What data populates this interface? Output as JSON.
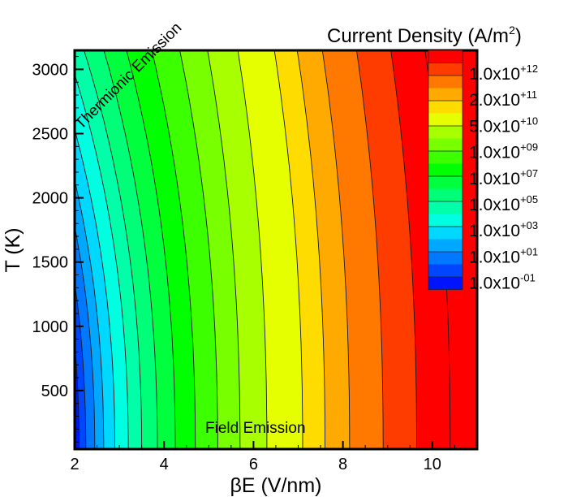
{
  "chart_data": {
    "type": "contour",
    "title": "",
    "xlabel": "βE (V/nm)",
    "ylabel": "T (K)",
    "xlim": [
      2,
      11
    ],
    "ylim": [
      44,
      3150
    ],
    "x_ticks": [
      2,
      4,
      6,
      8,
      10
    ],
    "y_ticks": [
      500,
      1000,
      1500,
      2000,
      2500,
      3000
    ],
    "grid": false,
    "colorbar": {
      "title": "Current Density (A/m²)",
      "scale": "log",
      "position": "inside-right",
      "labels": [
        {
          "mant": "1.0x10",
          "exp": "+12"
        },
        {
          "mant": "2.0x10",
          "exp": "+11"
        },
        {
          "mant": "5.0x10",
          "exp": "+10"
        },
        {
          "mant": "1.0x10",
          "exp": "+09"
        },
        {
          "mant": "1.0x10",
          "exp": "+07"
        },
        {
          "mant": "1.0x10",
          "exp": "+05"
        },
        {
          "mant": "1.0x10",
          "exp": "+03"
        },
        {
          "mant": "1.0x10",
          "exp": "+01"
        },
        {
          "mant": "1.0x10",
          "exp": "-01"
        }
      ],
      "band_colors_top_to_bottom": [
        "#ff0000",
        "#ff3c00",
        "#ff7800",
        "#ffaa00",
        "#ffdc00",
        "#e6ff00",
        "#a8ff00",
        "#78ff00",
        "#3cff00",
        "#00ff00",
        "#00ff3c",
        "#00ff78",
        "#00ffa8",
        "#00ffe0",
        "#00d8ff",
        "#00a8ff",
        "#0078ff",
        "#0046ff",
        "#0014ff"
      ]
    },
    "annotations": [
      {
        "text": "Thermionic Emission",
        "x": 2.1,
        "y": 2550,
        "rotation": -45
      },
      {
        "text": "Field Emission",
        "x": 5.0,
        "y": 170
      }
    ],
    "contour_levels_bottom_x_positions": [
      2.1,
      2.25,
      2.45,
      2.65,
      2.9,
      3.2,
      3.5,
      3.85,
      4.25,
      4.7,
      5.2,
      5.7,
      6.3,
      7.1,
      7.6,
      8.15,
      8.9,
      9.65,
      10.4
    ],
    "description": "Filled contour of emission current density vs. field (βE) and temperature T; iso-lines bend toward lower field at higher temperature (thermionic regime top-left, field emission regime bottom)."
  }
}
